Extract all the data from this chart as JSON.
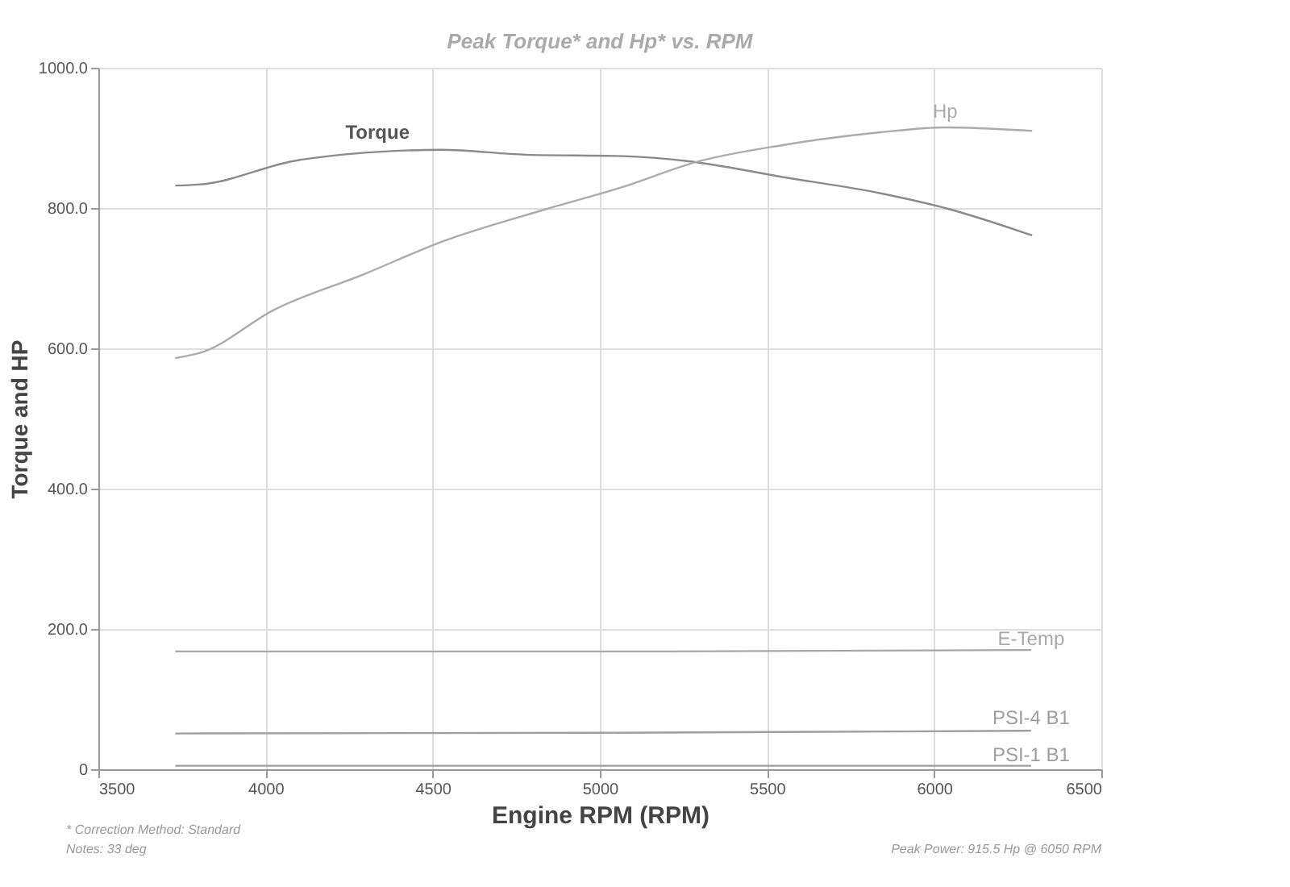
{
  "chart_data": {
    "type": "line",
    "title": "Peak Torque* and Hp* vs. RPM",
    "xlabel": "Engine RPM (RPM)",
    "ylabel": "Torque and HP",
    "xlim": [
      3500,
      6500
    ],
    "xticks": [
      3500,
      4000,
      4500,
      5000,
      5500,
      6000,
      6500
    ],
    "ylim": [
      0,
      1000
    ],
    "yticks": [
      0,
      {
        "value": 200,
        "label": "200.0"
      },
      {
        "value": 400,
        "label": "400.0"
      },
      {
        "value": 600,
        "label": "600.0"
      },
      {
        "value": 800,
        "label": "800.0"
      },
      {
        "value": 1000,
        "label": "1000.0"
      }
    ],
    "grid": true,
    "series": [
      {
        "name": "Torque",
        "color": "#8a8a8a",
        "x": [
          3730,
          3813,
          4084,
          4335,
          4527,
          4778,
          5068,
          5261,
          5550,
          5840,
          6033,
          6293
        ],
        "values": [
          832,
          834,
          867,
          880,
          883,
          876,
          874,
          867,
          844,
          821,
          800,
          761
        ]
      },
      {
        "name": "Hp",
        "color": "#ababab",
        "x": [
          3730,
          3813,
          4026,
          4296,
          4527,
          4836,
          5068,
          5299,
          5550,
          5840,
          6033,
          6293
        ],
        "values": [
          586,
          595,
          655,
          706,
          752,
          798,
          830,
          867,
          890,
          908,
          915,
          910
        ]
      },
      {
        "name": "E-Temp",
        "color": "#a8a8a8",
        "x": [
          3730,
          4500,
          5200,
          6290
        ],
        "values": [
          168,
          168,
          168,
          170
        ]
      },
      {
        "name": "PSI-4 B1",
        "color": "#9e9e9e",
        "x": [
          3730,
          5000,
          6290
        ],
        "values": [
          51,
          52,
          55
        ]
      },
      {
        "name": "PSI-1 B1",
        "color": "#9e9e9e",
        "x": [
          3730,
          6290
        ],
        "values": [
          5,
          5
        ]
      }
    ],
    "annotations": [
      "* Correction Method: Standard",
      "Notes: 33 deg",
      "Peak Power: 915.5 Hp @ 6050 RPM"
    ]
  }
}
